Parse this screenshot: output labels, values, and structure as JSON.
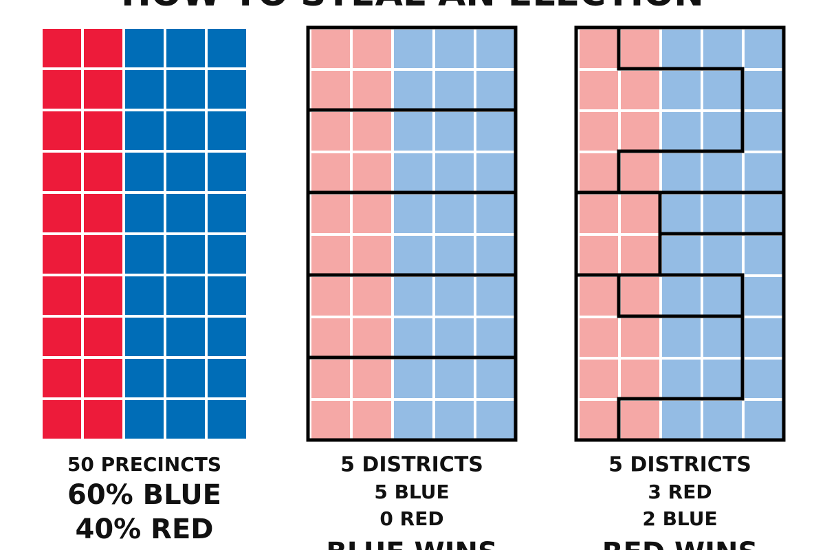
{
  "title": "HOW TO STEAL AN ELECTION",
  "panels": [
    {
      "lines": [
        "50 PRECINCTS",
        "60% BLUE",
        "40% RED"
      ]
    },
    {
      "lines": [
        "5 DISTRICTS",
        "5 BLUE",
        "0 RED",
        "BLUE WINS"
      ]
    },
    {
      "lines": [
        "5 DISTRICTS",
        "3 RED",
        "2 BLUE",
        "RED WINS"
      ]
    }
  ]
}
